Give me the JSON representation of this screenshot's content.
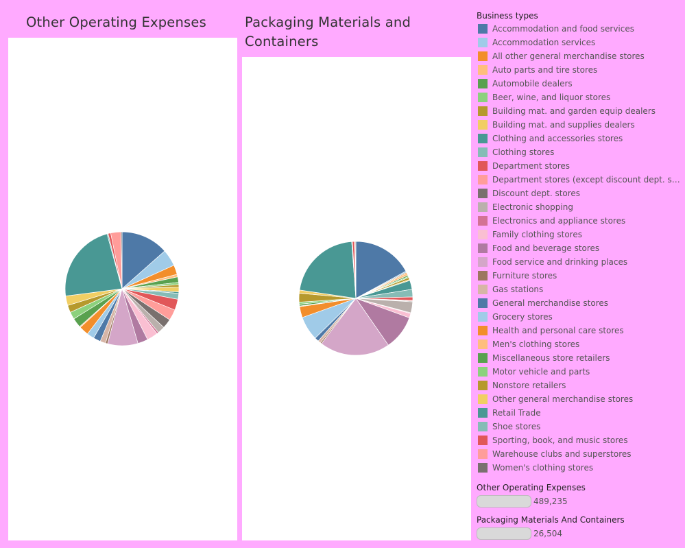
{
  "chart_data": [
    {
      "type": "pie",
      "title": "Other Operating Expenses",
      "slices": [
        {
          "label": "Accommodation and food services",
          "value": 13.0
        },
        {
          "label": "Accommodation services",
          "value": 4.6
        },
        {
          "label": "All other general merchandise stores",
          "value": 2.6
        },
        {
          "label": "Auto parts and tire stores",
          "value": 0.7
        },
        {
          "label": "Automobile dealers",
          "value": 1.5
        },
        {
          "label": "Beer, wine, and liquor stores",
          "value": 0.6
        },
        {
          "label": "Building mat. and garden equip dealers",
          "value": 0.7
        },
        {
          "label": "Building mat. and supplies dealers",
          "value": 1.3
        },
        {
          "label": "Clothing and accessories stores",
          "value": 0.4
        },
        {
          "label": "Clothing stores",
          "value": 1.6
        },
        {
          "label": "Department stores",
          "value": 3.0
        },
        {
          "label": "Department stores (except discount dept. stores)",
          "value": 3.0
        },
        {
          "label": "Discount dept. stores",
          "value": 2.6
        },
        {
          "label": "Electronic shopping",
          "value": 2.0
        },
        {
          "label": "Electronics and appliance stores",
          "value": 0.5
        },
        {
          "label": "Family clothing stores",
          "value": 3.0
        },
        {
          "label": "Food and beverage stores",
          "value": 2.8
        },
        {
          "label": "Food service and drinking places",
          "value": 8.3
        },
        {
          "label": "Furniture stores",
          "value": 0.6
        },
        {
          "label": "Gas stations",
          "value": 1.5
        },
        {
          "label": "General merchandise stores",
          "value": 2.0
        },
        {
          "label": "Grocery stores",
          "value": 2.0
        },
        {
          "label": "Health and personal care stores",
          "value": 2.6
        },
        {
          "label": "Men's clothing stores",
          "value": 0.3
        },
        {
          "label": "Miscellaneous store retailers",
          "value": 2.6
        },
        {
          "label": "Motor vehicle and parts",
          "value": 2.0
        },
        {
          "label": "Nonstore retailers",
          "value": 2.0
        },
        {
          "label": "Other general merchandise stores",
          "value": 2.6
        },
        {
          "label": "Retail Trade",
          "value": 22.0
        },
        {
          "label": "Shoe stores",
          "value": 0.3
        },
        {
          "label": "Sporting, book, and music stores",
          "value": 0.7
        },
        {
          "label": "Warehouse clubs and superstores",
          "value": 2.8
        },
        {
          "label": "Women's clothing stores",
          "value": 0.3
        }
      ]
    },
    {
      "type": "pie",
      "title": "Packaging Materials  and Containers",
      "slices": [
        {
          "label": "Accommodation and food services",
          "value": 17.5
        },
        {
          "label": "Accommodation services",
          "value": 0.4
        },
        {
          "label": "All other general merchandise stores",
          "value": 0.3
        },
        {
          "label": "Auto parts and tire stores",
          "value": 0.6
        },
        {
          "label": "Automobile dealers",
          "value": 0.4
        },
        {
          "label": "Beer, wine, and liquor stores",
          "value": 0.3
        },
        {
          "label": "Building mat. and garden equip dealers",
          "value": 0.6
        },
        {
          "label": "Building mat. and supplies dealers",
          "value": 0.3
        },
        {
          "label": "Clothing and accessories stores",
          "value": 2.6
        },
        {
          "label": "Clothing stores",
          "value": 2.2
        },
        {
          "label": "Department stores",
          "value": 1.0
        },
        {
          "label": "Department stores (except discount dept. stores)",
          "value": 0.2
        },
        {
          "label": "Discount dept. stores",
          "value": 0.2
        },
        {
          "label": "Electronic shopping",
          "value": 3.2
        },
        {
          "label": "Electronics and appliance stores",
          "value": 0.2
        },
        {
          "label": "Family clothing stores",
          "value": 1.3
        },
        {
          "label": "Food and beverage stores",
          "value": 10.0
        },
        {
          "label": "Food service and drinking places",
          "value": 20.5
        },
        {
          "label": "Furniture stores",
          "value": 0.4
        },
        {
          "label": "Gas stations",
          "value": 0.8
        },
        {
          "label": "General merchandise stores",
          "value": 1.2
        },
        {
          "label": "Grocery stores",
          "value": 7.0
        },
        {
          "label": "Health and personal care stores",
          "value": 3.2
        },
        {
          "label": "Men's clothing stores",
          "value": 0.2
        },
        {
          "label": "Miscellaneous store retailers",
          "value": 0.5
        },
        {
          "label": "Motor vehicle and parts",
          "value": 0.6
        },
        {
          "label": "Nonstore retailers",
          "value": 2.6
        },
        {
          "label": "Other general merchandise stores",
          "value": 0.9
        },
        {
          "label": "Retail Trade",
          "value": 22.0
        },
        {
          "label": "Shoe stores",
          "value": 0.2
        },
        {
          "label": "Sporting, book, and music stores",
          "value": 0.6
        },
        {
          "label": "Warehouse clubs and superstores",
          "value": 0.2
        },
        {
          "label": "Women's clothing stores",
          "value": 0.2
        }
      ]
    }
  ],
  "legend": {
    "title": "Business types",
    "items": [
      {
        "label": "Accommodation and food services",
        "color": "#4e79a7"
      },
      {
        "label": "Accommodation services",
        "color": "#a0cbe8"
      },
      {
        "label": "All other general merchandise stores",
        "color": "#f28e2b"
      },
      {
        "label": "Auto parts and tire stores",
        "color": "#ffbe7d"
      },
      {
        "label": "Automobile dealers",
        "color": "#59a14f"
      },
      {
        "label": "Beer, wine, and liquor stores",
        "color": "#8cd17d"
      },
      {
        "label": "Building mat. and garden equip dealers",
        "color": "#b6992d"
      },
      {
        "label": "Building mat. and supplies dealers",
        "color": "#f1ce63"
      },
      {
        "label": "Clothing and accessories stores",
        "color": "#499894"
      },
      {
        "label": "Clothing stores",
        "color": "#86bcb6"
      },
      {
        "label": "Department stores",
        "color": "#e15759"
      },
      {
        "label": "Department stores (except discount dept. stor..",
        "color": "#ff9d9a"
      },
      {
        "label": "Discount dept. stores",
        "color": "#79706e"
      },
      {
        "label": "Electronic shopping",
        "color": "#bab0ac"
      },
      {
        "label": "Electronics and appliance stores",
        "color": "#d37295"
      },
      {
        "label": "Family clothing stores",
        "color": "#fabfd2"
      },
      {
        "label": "Food and beverage stores",
        "color": "#b07aa1"
      },
      {
        "label": "Food service and drinking places",
        "color": "#d4a6c8"
      },
      {
        "label": "Furniture stores",
        "color": "#9d7660"
      },
      {
        "label": "Gas stations",
        "color": "#d7b5a6"
      },
      {
        "label": "General merchandise stores",
        "color": "#4e79a7"
      },
      {
        "label": "Grocery stores",
        "color": "#a0cbe8"
      },
      {
        "label": "Health and personal care stores",
        "color": "#f28e2b"
      },
      {
        "label": "Men's clothing stores",
        "color": "#ffbe7d"
      },
      {
        "label": "Miscellaneous store retailers",
        "color": "#59a14f"
      },
      {
        "label": "Motor vehicle and parts",
        "color": "#8cd17d"
      },
      {
        "label": "Nonstore retailers",
        "color": "#b6992d"
      },
      {
        "label": "Other general merchandise stores",
        "color": "#f1ce63"
      },
      {
        "label": "Retail Trade",
        "color": "#499894"
      },
      {
        "label": "Shoe stores",
        "color": "#86bcb6"
      },
      {
        "label": "Sporting, book, and  music stores",
        "color": "#e15759"
      },
      {
        "label": "Warehouse clubs and superstores",
        "color": "#ff9d9a"
      },
      {
        "label": "Women's clothing stores",
        "color": "#79706e"
      }
    ]
  },
  "size_legends": [
    {
      "title": "Other Operating Expenses",
      "value": "489,235"
    },
    {
      "title": "Packaging Materials And Containers",
      "value": "26,504"
    }
  ]
}
